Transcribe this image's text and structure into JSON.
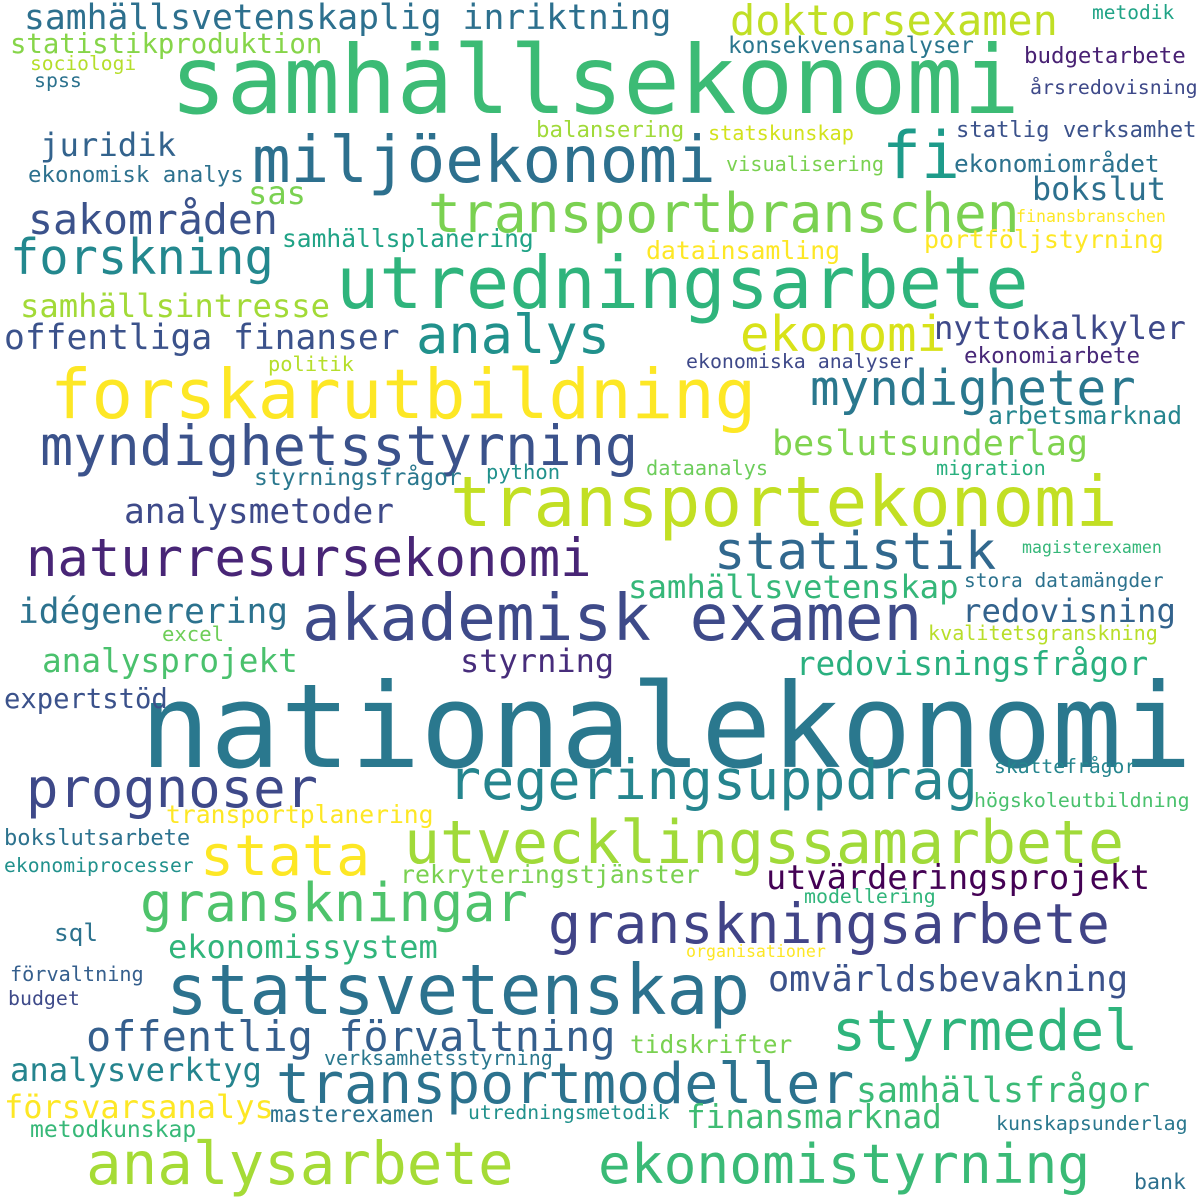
{
  "words": [
    {
      "text": "nationalekonomi",
      "color": "#2a788e"
    },
    {
      "text": "samhällsekonomi",
      "color": "#3cbb75"
    },
    {
      "text": "forskarutbildning",
      "color": "#fde725"
    },
    {
      "text": "transportekonomi",
      "color": "#c2df23"
    },
    {
      "text": "utredningsarbete",
      "color": "#2fb47c"
    },
    {
      "text": "akademisk examen",
      "color": "#3e4a89"
    },
    {
      "text": "statsvetenskap",
      "color": "#2c728e"
    },
    {
      "text": "miljöekonomi",
      "color": "#2d708e"
    },
    {
      "text": "transportmodeller",
      "color": "#2c728e"
    },
    {
      "text": "naturresursekonomi",
      "color": "#482576"
    },
    {
      "text": "myndighetsstyrning",
      "color": "#3b528b"
    },
    {
      "text": "utvecklingssamarbete",
      "color": "#a0da39"
    },
    {
      "text": "analysarbete",
      "color": "#a5db36"
    },
    {
      "text": "regeringsuppdrag",
      "color": "#25858e"
    },
    {
      "text": "transportbranschen",
      "color": "#7ad151"
    },
    {
      "text": "granskningsarbete",
      "color": "#414487"
    },
    {
      "text": "ekonomistyrning",
      "color": "#3aba76"
    },
    {
      "text": "granskningar",
      "color": "#4ec36b"
    },
    {
      "text": "prognoser",
      "color": "#3e4989"
    },
    {
      "text": "styrmedel",
      "color": "#2fb47c"
    },
    {
      "text": "statistik",
      "color": "#31688e"
    },
    {
      "text": "offentlig förvaltning",
      "color": "#355f8d"
    },
    {
      "text": "forskning",
      "color": "#23888e"
    },
    {
      "text": "analys",
      "color": "#21918c"
    },
    {
      "text": "stata",
      "color": "#fde725"
    },
    {
      "text": "myndigheter",
      "color": "#2a788e"
    },
    {
      "text": "fi",
      "color": "#1e9b8a"
    },
    {
      "text": "doktorsexamen",
      "color": "#c0df25"
    },
    {
      "text": "samhällsvetenskaplig inriktning",
      "color": "#2d708e"
    },
    {
      "text": "ekonomi",
      "color": "#d8e219"
    },
    {
      "text": "sakområden",
      "color": "#3b528b"
    },
    {
      "text": "offentliga finanser",
      "color": "#3b528b"
    },
    {
      "text": "omvärldsbevakning",
      "color": "#3b528b"
    },
    {
      "text": "utvärderingsprojekt",
      "color": "#440154"
    },
    {
      "text": "beslutsunderlag",
      "color": "#7fd34e"
    },
    {
      "text": "analysmetoder",
      "color": "#3e4a89"
    },
    {
      "text": "idégenerering",
      "color": "#2c728e"
    },
    {
      "text": "samhällsvetenskap",
      "color": "#35b779"
    },
    {
      "text": "redovisning",
      "color": "#33638d"
    },
    {
      "text": "redovisningsfrågor",
      "color": "#2ab07f"
    },
    {
      "text": "samhällsfrågor",
      "color": "#3aba76"
    },
    {
      "text": "finansmarknad",
      "color": "#3fbc73"
    },
    {
      "text": "analysprojekt",
      "color": "#4ac16d"
    },
    {
      "text": "analysverktyg",
      "color": "#25848e"
    },
    {
      "text": "ekonomissystem",
      "color": "#31b57b"
    },
    {
      "text": "försvarsanalys",
      "color": "#fde725"
    },
    {
      "text": "nyttokalkyler",
      "color": "#3e4989"
    },
    {
      "text": "samhällsintresse",
      "color": "#a2da37"
    },
    {
      "text": "juridik",
      "color": "#33638d"
    },
    {
      "text": "bokslut",
      "color": "#2d708e"
    },
    {
      "text": "styrning",
      "color": "#472d7b"
    },
    {
      "text": "sas",
      "color": "#7ad151"
    },
    {
      "text": "arbetsmarknad",
      "color": "#25858e"
    },
    {
      "text": "statistikproduktion",
      "color": "#86d549"
    },
    {
      "text": "konsekvensanalyser",
      "color": "#2a768e"
    },
    {
      "text": "budgetarbete",
      "color": "#482173"
    },
    {
      "text": "ekonomisk analys",
      "color": "#2d718e"
    },
    {
      "text": "samhällsplanering",
      "color": "#20a386"
    },
    {
      "text": "årsredovisning",
      "color": "#3e4989"
    },
    {
      "text": "statlig verksamhet",
      "color": "#3b528b"
    },
    {
      "text": "ekonomiområdet",
      "color": "#2c728e"
    },
    {
      "text": "portföljstyrning",
      "color": "#fde725"
    },
    {
      "text": "balansering",
      "color": "#a0da39"
    },
    {
      "text": "statskunskap",
      "color": "#d2e21b"
    },
    {
      "text": "visualisering",
      "color": "#7ad151"
    },
    {
      "text": "datainsamling",
      "color": "#fde725"
    },
    {
      "text": "ekonomiska analyser",
      "color": "#3e4989"
    },
    {
      "text": "ekonomiarbete",
      "color": "#482878"
    },
    {
      "text": "politik",
      "color": "#b5de2b"
    },
    {
      "text": "dataanalys",
      "color": "#6ccd5a"
    },
    {
      "text": "python",
      "color": "#21918c"
    },
    {
      "text": "styrningsfrågor",
      "color": "#2a788e"
    },
    {
      "text": "migration",
      "color": "#2ab07f"
    },
    {
      "text": "magisterexamen",
      "color": "#35b779"
    },
    {
      "text": "stora datamängder",
      "color": "#2c728e"
    },
    {
      "text": "kvalitetsgranskning",
      "color": "#b8de29"
    },
    {
      "text": "excel",
      "color": "#6ece58"
    },
    {
      "text": "expertstöd",
      "color": "#3b528b"
    },
    {
      "text": "skattefrågor",
      "color": "#25858e"
    },
    {
      "text": "högskoleutbildning",
      "color": "#4ac16d"
    },
    {
      "text": "transportplanering",
      "color": "#fde725"
    },
    {
      "text": "bokslutsarbete",
      "color": "#2c728e"
    },
    {
      "text": "ekonomiprocesser",
      "color": "#21918c"
    },
    {
      "text": "rekryteringstjänster",
      "color": "#7ad151"
    },
    {
      "text": "modellering",
      "color": "#31b57b"
    },
    {
      "text": "organisationer",
      "color": "#fde725"
    },
    {
      "text": "sql",
      "color": "#2c728e"
    },
    {
      "text": "förvaltning",
      "color": "#355f8d"
    },
    {
      "text": "budget",
      "color": "#3e4a89"
    },
    {
      "text": "tidskrifter",
      "color": "#7ad151"
    },
    {
      "text": "verksamhetsstyrning",
      "color": "#2a788e"
    },
    {
      "text": "masterexamen",
      "color": "#2c728e"
    },
    {
      "text": "utredningsmetodik",
      "color": "#21918c"
    },
    {
      "text": "metodkunskap",
      "color": "#37b878"
    },
    {
      "text": "kunskapsunderlag",
      "color": "#2a788e"
    },
    {
      "text": "bank",
      "color": "#2d708e"
    },
    {
      "text": "metodik",
      "color": "#20a386"
    },
    {
      "text": "sociologi",
      "color": "#b5de2b"
    },
    {
      "text": "spss",
      "color": "#2c728e"
    },
    {
      "text": "finansbranschen",
      "color": "#fde725"
    }
  ]
}
